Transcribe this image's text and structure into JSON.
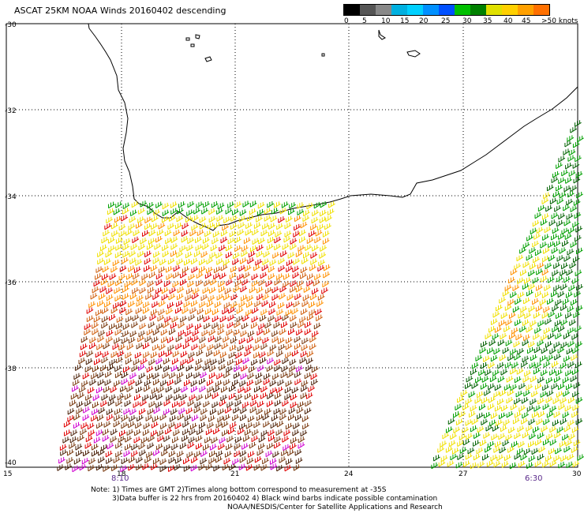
{
  "title": "ASCAT 25KM NOAA Winds 20160402 descending",
  "legend": {
    "colors": [
      "#000000",
      "#555555",
      "#888888",
      "#00b0e0",
      "#00d0ff",
      "#0090ff",
      "#0050ff",
      "#00c000",
      "#008000",
      "#e0e000",
      "#ffd000",
      "#ffa000",
      "#ff7000",
      "#ff3030",
      "#e00000",
      "#8b4513",
      "#5a2a10",
      "#ff00ff",
      "#b000d0",
      "#6000a0"
    ],
    "labels": [
      "0",
      "5",
      "10",
      "15",
      "20",
      "25",
      "30",
      "35",
      "40",
      "45",
      ">50 knots"
    ]
  },
  "map": {
    "lat_labels": [
      "-30",
      "-32",
      "-34",
      "-36",
      "-38",
      "-40"
    ],
    "lon_labels": [
      "15",
      "18",
      "21",
      "24",
      "27",
      "30"
    ],
    "time_labels": [
      "8:10",
      "6:30"
    ],
    "speed_colors": {
      "green": "#00a000",
      "darkgreen": "#006000",
      "yellow": "#f0e000",
      "orange": "#ff9000",
      "darkorange": "#d06010",
      "red": "#e00000",
      "brown": "#7a3a10",
      "darkbrown": "#4a2008",
      "magenta": "#d000d0",
      "blue": "#0060ff"
    }
  },
  "notes": {
    "line1": "Note: 1) Times are GMT 2)Times along bottom correspond to measurement at -35S",
    "line2": "3)Data buffer is 22 hrs from 20160402 4) Black wind barbs indicate possible contamination",
    "line3": "NOAA/NESDIS/Center for Satellite Applications and Research"
  }
}
